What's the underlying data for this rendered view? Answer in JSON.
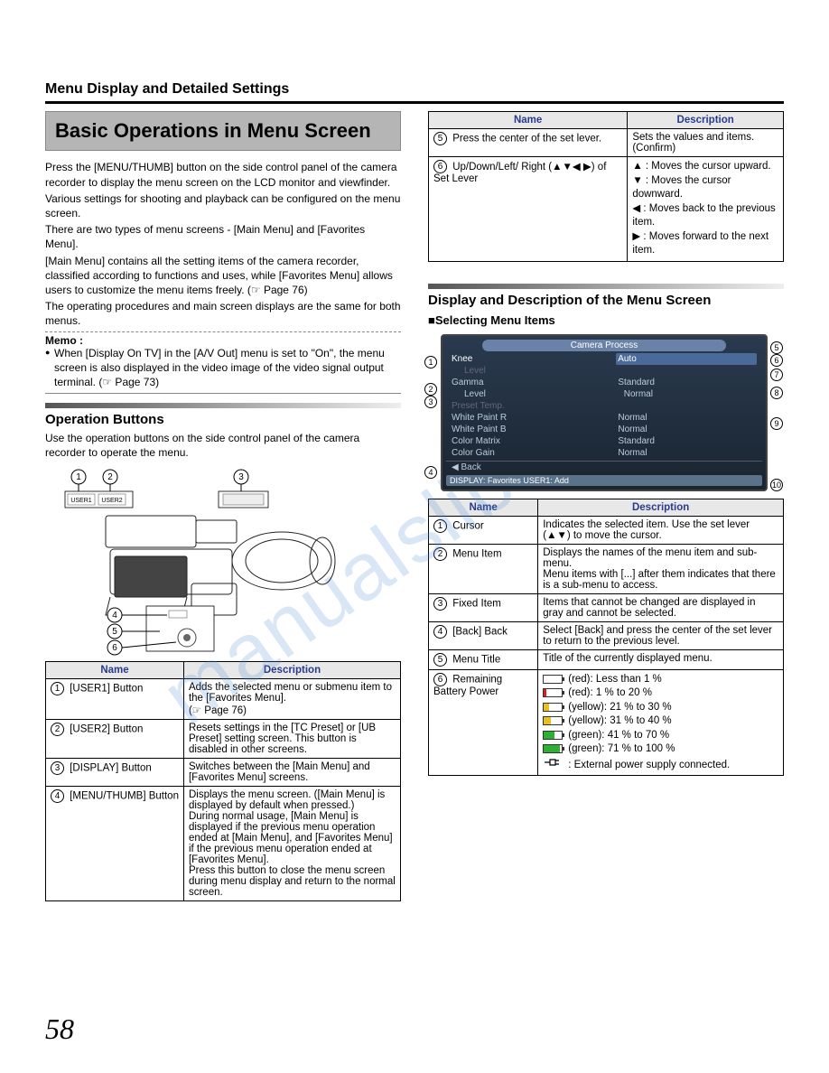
{
  "section_header": "Menu Display and Detailed Settings",
  "title": "Basic Operations in Menu Screen",
  "intro_paragraphs": [
    "Press the [MENU/THUMB] button on the side control panel of the camera recorder to display the menu screen on the LCD monitor and viewfinder.",
    "Various settings for shooting and playback can be configured on the menu screen.",
    "There are two types of menu screens - [Main Menu] and [Favorites Menu].",
    "[Main Menu] contains all the setting items of the camera recorder, classified according to functions and uses, while [Favorites Menu] allows users to customize the menu items freely. (☞ Page 76)",
    "The operating procedures and main screen displays are the same for both menus."
  ],
  "memo_label": "Memo :",
  "memo_text": "When [Display On TV] in the [A/V Out] menu is set to \"On\", the menu screen is also displayed in the video image of the video signal output terminal. (☞ Page 73)",
  "operation_buttons_head": "Operation Buttons",
  "operation_buttons_sub": "Use the operation buttons on the side control panel of the camera recorder to operate the menu.",
  "diagram_labels": {
    "user1": "USER1",
    "user2": "USER2"
  },
  "table1": {
    "headers": [
      "Name",
      "Description"
    ],
    "rows": [
      {
        "num": "1",
        "name": "[USER1] Button",
        "desc": "Adds the selected menu or submenu item to the [Favorites Menu].\n(☞ Page 76)"
      },
      {
        "num": "2",
        "name": "[USER2] Button",
        "desc": "Resets settings in the [TC Preset] or [UB Preset] setting screen. This button is disabled in other screens."
      },
      {
        "num": "3",
        "name": "[DISPLAY] Button",
        "desc": "Switches between the [Main Menu] and [Favorites Menu] screens."
      },
      {
        "num": "4",
        "name": "[MENU/THUMB] Button",
        "desc": "Displays the menu screen. ([Main Menu] is displayed by default when pressed.)\nDuring normal usage, [Main Menu] is displayed if the previous menu operation ended at [Main Menu], and [Favorites Menu] if the previous menu operation ended at [Favorites Menu].\nPress this button to close the menu screen during menu display and return to the normal screen."
      }
    ]
  },
  "table2": {
    "headers": [
      "Name",
      "Description"
    ],
    "rows": [
      {
        "num": "5",
        "name": "Press the center of the set lever.",
        "desc": "Sets the values and items. (Confirm)"
      },
      {
        "num": "6",
        "name": "Up/Down/Left/ Right (▲▼◀ ▶) of Set Lever",
        "desc_lines": [
          "▲ : Moves the cursor upward.",
          "▼ : Moves the cursor downward.",
          "◀ : Moves back to the previous item.",
          "▶ : Moves forward to the next item."
        ]
      }
    ]
  },
  "right_section_head": "Display and Description of the Menu Screen",
  "selecting_head": "■Selecting Menu Items",
  "menu_screenshot": {
    "title": "Camera Process",
    "rows": [
      {
        "left": "Knee",
        "right": "Auto",
        "highlight": true
      },
      {
        "left": "Level",
        "right": "",
        "gray": true,
        "sub": true
      },
      {
        "left": "Gamma",
        "right": "Standard"
      },
      {
        "left": "Level",
        "right": "Normal",
        "sub": true
      },
      {
        "left": "Preset Temp.",
        "right": "",
        "gray": true
      },
      {
        "left": "White Paint R",
        "right": "Normal"
      },
      {
        "left": "White Paint B",
        "right": "Normal"
      },
      {
        "left": "Color Matrix",
        "right": "Standard"
      },
      {
        "left": "Color Gain",
        "right": "Normal"
      }
    ],
    "back": "Back",
    "bottom": "DISPLAY: Favorites  USER1: Add"
  },
  "callouts_left": [
    "1",
    "2",
    "3",
    "4"
  ],
  "callouts_right": [
    "5",
    "6",
    "7",
    "8",
    "9",
    "10"
  ],
  "table3": {
    "headers": [
      "Name",
      "Description"
    ],
    "rows": [
      {
        "num": "1",
        "name": "Cursor",
        "desc": "Indicates the selected item. Use the set lever (▲▼) to move the cursor."
      },
      {
        "num": "2",
        "name": "Menu Item",
        "desc": "Displays the names of the menu item and sub-menu.\nMenu items with [...] after them indicates that there is a sub-menu to access."
      },
      {
        "num": "3",
        "name": "Fixed Item",
        "desc": "Items that cannot be changed are displayed in gray and cannot be selected."
      },
      {
        "num": "4",
        "name": "[Back] Back",
        "desc": "Select [Back] and press the center of the set lever to return to the previous level."
      },
      {
        "num": "5",
        "name": "Menu Title",
        "desc": "Title of the currently displayed menu."
      },
      {
        "num": "6",
        "name": "Remaining Battery Power",
        "battery": true
      }
    ]
  },
  "battery_levels": [
    {
      "color": "#d82020",
      "fill": 0,
      "label": "(red): Less than 1 %"
    },
    {
      "color": "#d82020",
      "fill": 15,
      "label": "(red): 1 % to 20 %"
    },
    {
      "color": "#e8c020",
      "fill": 28,
      "label": "(yellow): 21 % to 30 %"
    },
    {
      "color": "#e8c020",
      "fill": 38,
      "label": "(yellow): 31 % to 40 %"
    },
    {
      "color": "#30b030",
      "fill": 60,
      "label": "(green): 41 % to 70 %"
    },
    {
      "color": "#30b030",
      "fill": 90,
      "label": "(green): 71 % to 100 %"
    }
  ],
  "plug_label": ": External power supply connected.",
  "page_number": "58",
  "watermark": "manualslib.com",
  "colors": {
    "header_blue": "#2a3b8f",
    "title_bg": "#b5b5b5"
  }
}
